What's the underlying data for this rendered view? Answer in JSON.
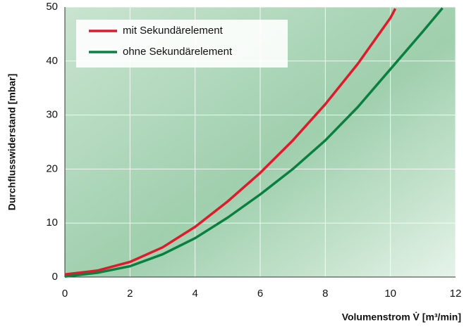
{
  "chart_data": {
    "type": "line",
    "xlabel": "Volumenstrom V̇ [m³/min]",
    "ylabel": "Durchflusswiderstand [mbar]",
    "xlim": [
      0,
      12
    ],
    "xticks": [
      0,
      2,
      4,
      6,
      8,
      10,
      12
    ],
    "ylim": [
      0,
      50
    ],
    "yticks": [
      0,
      10,
      20,
      30,
      40,
      50
    ],
    "grid": true,
    "legend": "upper left",
    "series": [
      {
        "name": "mit Sekundärelement",
        "color": "#e0192b",
        "x": [
          0,
          1,
          2,
          3,
          4,
          5,
          6,
          7,
          8,
          9,
          10,
          10.15
        ],
        "values": [
          0.5,
          1.2,
          2.8,
          5.5,
          9.3,
          14,
          19.3,
          25.3,
          32,
          39.5,
          48,
          49.7
        ]
      },
      {
        "name": "ohne Sekundärelement",
        "color": "#0a8040",
        "x": [
          0,
          1,
          2,
          3,
          4,
          5,
          6,
          7,
          8,
          9,
          10,
          11,
          11.6
        ],
        "values": [
          0.1,
          0.8,
          2,
          4.2,
          7.2,
          11,
          15.3,
          20,
          25.3,
          31.5,
          38.5,
          45.5,
          49.8
        ]
      }
    ]
  }
}
